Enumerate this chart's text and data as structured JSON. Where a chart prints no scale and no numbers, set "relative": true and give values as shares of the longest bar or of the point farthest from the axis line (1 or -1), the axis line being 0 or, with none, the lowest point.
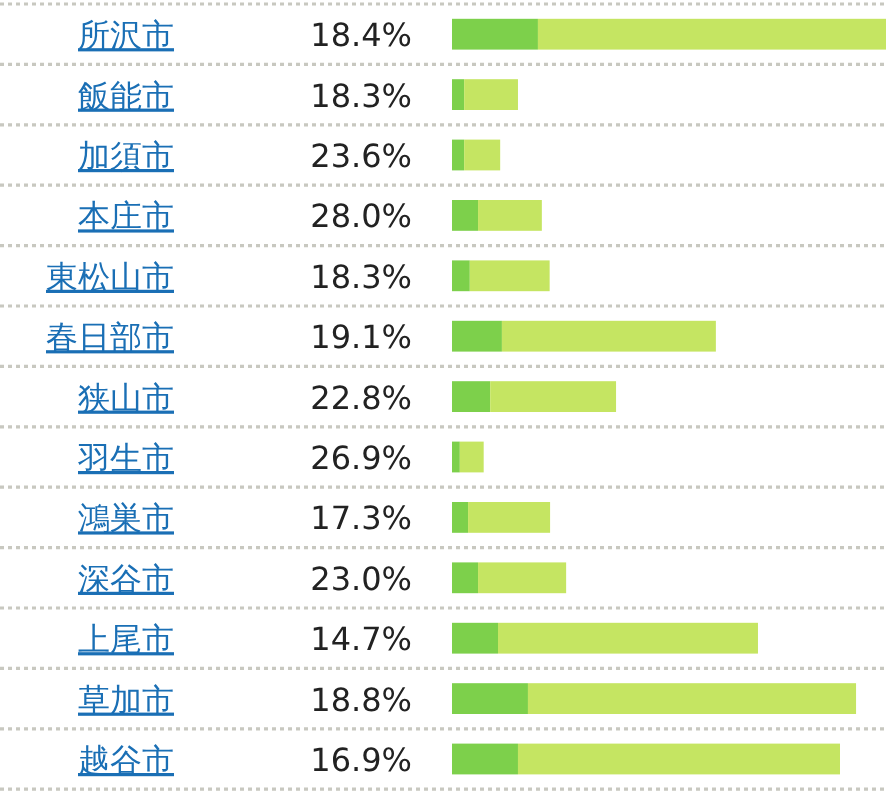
{
  "chart_data": {
    "type": "bar",
    "orientation": "horizontal",
    "stacked": true,
    "relative": true,
    "categories": [
      "所沢市",
      "飯能市",
      "加須市",
      "本庄市",
      "東松山市",
      "春日部市",
      "狭山市",
      "羽生市",
      "鴻巣市",
      "深谷市",
      "上尾市",
      "草加市",
      "越谷市"
    ],
    "series": [
      {
        "color": "#7dd04b",
        "values": [
          0.198,
          0.028,
          0.028,
          0.06,
          0.041,
          0.115,
          0.088,
          0.018,
          0.037,
          0.06,
          0.106,
          0.175,
          0.152
        ]
      },
      {
        "color": "#c5e562",
        "values": [
          0.802,
          0.124,
          0.083,
          0.147,
          0.184,
          0.493,
          0.29,
          0.055,
          0.189,
          0.203,
          0.599,
          0.756,
          0.742
        ]
      }
    ],
    "annotations": [
      "18.4%",
      "18.3%",
      "23.6%",
      "28.0%",
      "18.3%",
      "19.1%",
      "22.8%",
      "26.9%",
      "17.3%",
      "23.0%",
      "14.7%",
      "18.8%",
      "16.9%"
    ]
  }
}
